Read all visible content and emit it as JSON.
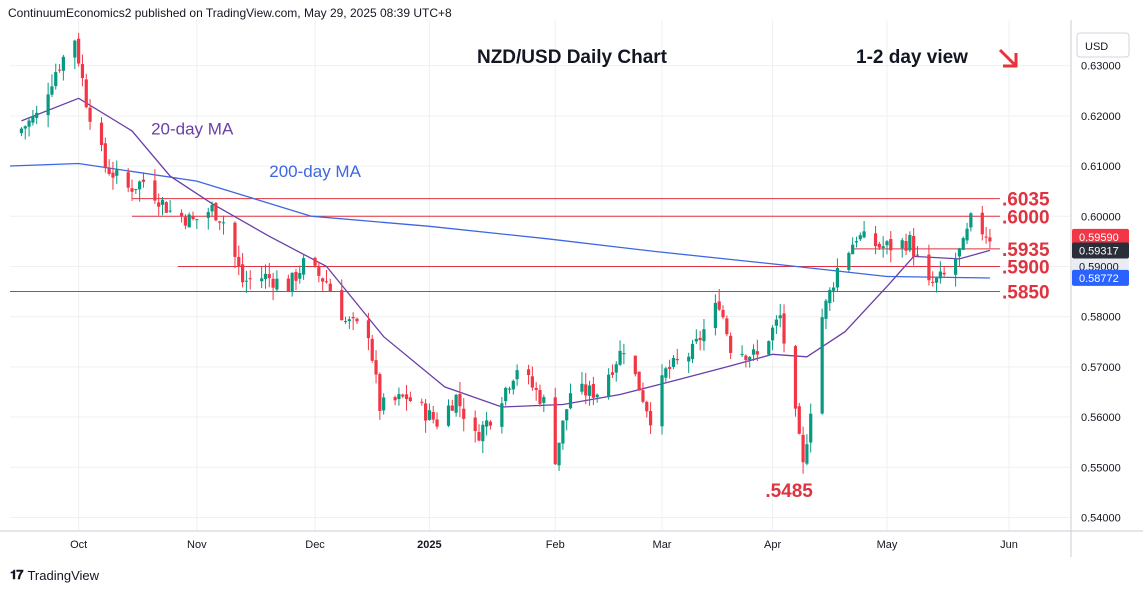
{
  "publisher_line": "ContinuumEconomics2 published on TradingView.com, May 29, 2025 08:39 UTC+8",
  "footer": {
    "brand": "TradingView",
    "logo_icon": "tradingview-logo-icon"
  },
  "chart_data": {
    "type": "candlestick",
    "title": "NZD/USD Daily Chart",
    "view_note": "1-2 day view",
    "view_arrow": {
      "icon": "down-right-arrow-icon",
      "color": "#e8323c"
    },
    "currency_label": "USD",
    "y_range": [
      0.5375,
      0.6375
    ],
    "y_ticks": [
      "0.63000",
      "0.62000",
      "0.61000",
      "0.60000",
      "0.59000",
      "0.58000",
      "0.57000",
      "0.56000",
      "0.55000",
      "0.54000"
    ],
    "y_tick_values": [
      0.63,
      0.62,
      0.61,
      0.6,
      0.59,
      0.58,
      0.57,
      0.56,
      0.55,
      0.54
    ],
    "x_ticks": [
      {
        "label": "Oct",
        "date": "2024-10-01",
        "bold": false
      },
      {
        "label": "Nov",
        "date": "2024-11-01",
        "bold": false
      },
      {
        "label": "Dec",
        "date": "2024-12-02",
        "bold": false
      },
      {
        "label": "2025",
        "date": "2025-01-01",
        "bold": true
      },
      {
        "label": "Feb",
        "date": "2025-02-03",
        "bold": false
      },
      {
        "label": "Mar",
        "date": "2025-03-03",
        "bold": false
      },
      {
        "label": "Apr",
        "date": "2025-04-01",
        "bold": false
      },
      {
        "label": "May",
        "date": "2025-05-01",
        "bold": false
      },
      {
        "label": "Jun",
        "date": "2025-06-02",
        "bold": false
      }
    ],
    "x_range": [
      "2024-09-13",
      "2025-06-18"
    ],
    "levels": [
      {
        "label": ".6035",
        "value": 0.6035,
        "from": "2024-10-15"
      },
      {
        "label": ".6000",
        "value": 0.6,
        "from": "2024-10-15"
      },
      {
        "label": ".5935",
        "value": 0.5935,
        "from": "2025-04-22"
      },
      {
        "label": ".5900",
        "value": 0.59,
        "from": "2024-10-27"
      },
      {
        "label": ".5850",
        "value": 0.585,
        "from": "2024-09-13"
      }
    ],
    "low_annotation": {
      "label": ".5485",
      "value": 0.5485,
      "date": "2025-04-09"
    },
    "ma_labels": [
      {
        "label": "20-day MA",
        "color": "#6a3fa8",
        "date": "2024-10-20",
        "value": 0.6175
      },
      {
        "label": "200-day MA",
        "color": "#3d67e0",
        "date": "2024-11-20",
        "value": 0.609
      }
    ],
    "price_badges": [
      {
        "text": "0.59590",
        "value": 0.5959,
        "bg": "#f23645",
        "fg": "#ffffff"
      },
      {
        "text": "0.59317",
        "value": 0.59317,
        "bg": "#2a2e39",
        "fg": "#ffffff"
      },
      {
        "text": "0.59000",
        "value": 0.59,
        "bg": "#e9ecf2",
        "fg": "#131722"
      },
      {
        "text": "0.58772",
        "value": 0.58772,
        "bg": "#2962ff",
        "fg": "#ffffff"
      }
    ],
    "colors": {
      "up": "#089981",
      "down": "#f23645",
      "level": "#e0323f",
      "ma20": "#6a3fa8",
      "ma200": "#3d67e0",
      "grid": "#eef0f3"
    },
    "key_points": {
      "close_series": [
        [
          "2024-09-16",
          0.6175
        ],
        [
          "2024-09-20",
          0.62
        ],
        [
          "2024-09-25",
          0.629
        ],
        [
          "2024-09-30",
          0.6355
        ],
        [
          "2024-10-03",
          0.623
        ],
        [
          "2024-10-08",
          0.61
        ],
        [
          "2024-10-14",
          0.6055
        ],
        [
          "2024-10-18",
          0.607
        ],
        [
          "2024-10-25",
          0.601
        ],
        [
          "2024-10-31",
          0.599
        ],
        [
          "2024-11-05",
          0.6015
        ],
        [
          "2024-11-08",
          0.599
        ],
        [
          "2024-11-13",
          0.587
        ],
        [
          "2024-11-19",
          0.588
        ],
        [
          "2024-11-25",
          0.586
        ],
        [
          "2024-11-29",
          0.5905
        ],
        [
          "2024-12-05",
          0.587
        ],
        [
          "2024-12-10",
          0.579
        ],
        [
          "2024-12-16",
          0.577
        ],
        [
          "2024-12-19",
          0.562
        ],
        [
          "2024-12-26",
          0.564
        ],
        [
          "2025-01-03",
          0.559
        ],
        [
          "2025-01-08",
          0.564
        ],
        [
          "2025-01-13",
          0.556
        ],
        [
          "2025-01-17",
          0.56
        ],
        [
          "2025-01-24",
          0.57
        ],
        [
          "2025-01-31",
          0.563
        ],
        [
          "2025-02-03",
          0.552
        ],
        [
          "2025-02-07",
          0.565
        ],
        [
          "2025-02-14",
          0.565
        ],
        [
          "2025-02-21",
          0.574
        ],
        [
          "2025-02-28",
          0.56
        ],
        [
          "2025-03-04",
          0.569
        ],
        [
          "2025-03-11",
          0.573
        ],
        [
          "2025-03-18",
          0.583
        ],
        [
          "2025-03-21",
          0.574
        ],
        [
          "2025-03-28",
          0.572
        ],
        [
          "2025-04-03",
          0.58
        ],
        [
          "2025-04-09",
          0.55
        ],
        [
          "2025-04-14",
          0.58
        ],
        [
          "2025-04-18",
          0.5895
        ],
        [
          "2025-04-23",
          0.596
        ],
        [
          "2025-04-29",
          0.594
        ],
        [
          "2025-05-02",
          0.594
        ],
        [
          "2025-05-07",
          0.595
        ],
        [
          "2025-05-12",
          0.586
        ],
        [
          "2025-05-16",
          0.588
        ],
        [
          "2025-05-21",
          0.594
        ],
        [
          "2025-05-23",
          0.599
        ],
        [
          "2025-05-28",
          0.5959
        ]
      ],
      "ma20": [
        [
          "2024-09-16",
          0.619
        ],
        [
          "2024-10-01",
          0.6235
        ],
        [
          "2024-10-15",
          0.617
        ],
        [
          "2024-10-25",
          0.608
        ],
        [
          "2024-11-05",
          0.6025
        ],
        [
          "2024-11-20",
          0.596
        ],
        [
          "2024-12-05",
          0.59
        ],
        [
          "2024-12-20",
          0.576
        ],
        [
          "2025-01-05",
          0.566
        ],
        [
          "2025-01-20",
          0.562
        ],
        [
          "2025-02-05",
          0.5625
        ],
        [
          "2025-02-20",
          0.5645
        ],
        [
          "2025-03-05",
          0.567
        ],
        [
          "2025-03-20",
          0.57
        ],
        [
          "2025-04-01",
          0.5725
        ],
        [
          "2025-04-10",
          0.572
        ],
        [
          "2025-04-20",
          0.577
        ],
        [
          "2025-05-01",
          0.586
        ],
        [
          "2025-05-08",
          0.592
        ],
        [
          "2025-05-20",
          0.5915
        ],
        [
          "2025-05-28",
          0.5932
        ]
      ],
      "ma200": [
        [
          "2024-09-13",
          0.61
        ],
        [
          "2024-10-01",
          0.6105
        ],
        [
          "2024-11-01",
          0.607
        ],
        [
          "2024-12-01",
          0.6
        ],
        [
          "2025-01-01",
          0.598
        ],
        [
          "2025-02-01",
          0.5955
        ],
        [
          "2025-03-01",
          0.593
        ],
        [
          "2025-04-01",
          0.5905
        ],
        [
          "2025-05-01",
          0.588
        ],
        [
          "2025-05-28",
          0.5877
        ]
      ]
    }
  }
}
